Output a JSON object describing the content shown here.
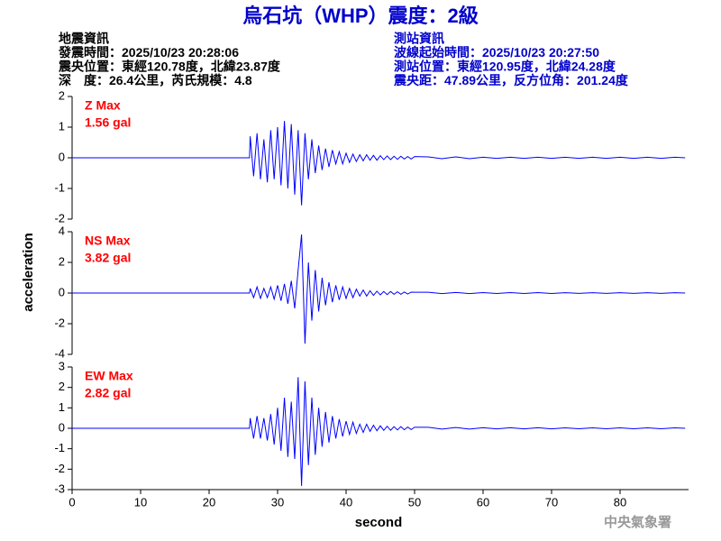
{
  "chart_data": {
    "type": "line",
    "title": "烏石坑（WHP）震度：2級",
    "info_left": [
      "地震資訊",
      "發震時間：2025/10/23 20:28:06",
      "震央位置：東經120.78度，北緯23.87度",
      "深　度：26.4公里，芮氏規模：4.8"
    ],
    "info_right": [
      "測站資訊",
      "波線起始時間：2025/10/23 20:27:50",
      "測站位置：東經120.95度，北緯24.28度",
      "震央距：47.89公里，反方位角：201.24度"
    ],
    "xlabel": "second",
    "ylabel": "acceleration",
    "footer": "中央氣象署",
    "xlim": [
      0,
      90
    ],
    "xticks": [
      0,
      10,
      20,
      30,
      40,
      50,
      60,
      70,
      80
    ],
    "x": [
      0,
      25.9,
      26,
      26.5,
      27,
      27.5,
      28,
      28.5,
      29,
      29.5,
      30,
      30.5,
      31,
      31.5,
      32,
      32.5,
      33,
      33.5,
      34,
      34.5,
      35,
      35.5,
      36,
      36.5,
      37,
      37.5,
      38,
      38.5,
      39,
      39.5,
      40,
      40.5,
      41,
      41.5,
      42,
      42.5,
      43,
      43.5,
      44,
      44.5,
      45,
      45.5,
      46,
      46.5,
      47,
      47.5,
      48,
      48.5,
      49,
      49.5,
      50,
      52,
      54,
      56,
      58,
      60,
      62,
      64,
      66,
      68,
      70,
      72,
      74,
      76,
      78,
      80,
      82,
      84,
      86,
      88,
      89.5
    ],
    "series": [
      {
        "name": "Z Max",
        "max_label": "1.56 gal",
        "color": "#0000ff",
        "label_color": "#ff0000",
        "ylim": [
          -2,
          2
        ],
        "yticks": [
          -2,
          -1,
          0,
          1,
          2
        ],
        "values": [
          0,
          0,
          0.7,
          -0.6,
          0.8,
          -0.7,
          0.6,
          -0.8,
          0.9,
          -0.7,
          1.0,
          -0.9,
          1.2,
          -1.0,
          1.1,
          -1.2,
          0.9,
          -1.55,
          0.8,
          -0.7,
          0.6,
          -0.5,
          0.4,
          -0.4,
          0.3,
          -0.3,
          0.25,
          -0.2,
          0.2,
          -0.2,
          0.15,
          -0.15,
          0.12,
          -0.12,
          0.1,
          -0.1,
          0.1,
          -0.08,
          0.08,
          -0.08,
          0.07,
          -0.06,
          0.06,
          -0.06,
          0.05,
          -0.05,
          0.05,
          -0.04,
          0.04,
          -0.04,
          0.04,
          0.03,
          -0.03,
          0.03,
          -0.03,
          0.02,
          -0.02,
          0.02,
          -0.02,
          0.02,
          -0.02,
          0.02,
          -0.02,
          0.02,
          -0.02,
          0.02,
          -0.02,
          0.02,
          -0.02,
          0.02,
          0
        ]
      },
      {
        "name": "NS Max",
        "max_label": "3.82 gal",
        "color": "#0000ff",
        "label_color": "#ff0000",
        "ylim": [
          -4,
          4
        ],
        "yticks": [
          -4,
          -2,
          0,
          2,
          4
        ],
        "values": [
          0,
          0,
          0.3,
          -0.3,
          0.4,
          -0.35,
          0.3,
          -0.3,
          0.4,
          -0.4,
          0.5,
          -0.5,
          0.6,
          -0.7,
          0.8,
          -1.0,
          1.5,
          3.82,
          -3.3,
          2.0,
          -1.8,
          1.5,
          -1.2,
          1.0,
          -0.8,
          0.7,
          -0.6,
          0.5,
          -0.45,
          0.4,
          -0.35,
          0.3,
          -0.3,
          0.25,
          -0.2,
          0.2,
          -0.2,
          0.15,
          -0.15,
          0.12,
          -0.12,
          0.1,
          -0.1,
          0.1,
          -0.08,
          0.08,
          -0.08,
          0.07,
          -0.06,
          0.06,
          0.05,
          0.05,
          -0.04,
          0.04,
          -0.04,
          0.03,
          -0.03,
          0.03,
          -0.03,
          0.03,
          -0.03,
          0.02,
          -0.02,
          0.02,
          -0.02,
          0.02,
          -0.02,
          0.02,
          -0.02,
          0.02,
          0
        ]
      },
      {
        "name": "EW Max",
        "max_label": "2.82 gal",
        "color": "#0000ff",
        "label_color": "#ff0000",
        "ylim": [
          -3,
          3
        ],
        "yticks": [
          -3,
          -2,
          -1,
          0,
          1,
          2,
          3
        ],
        "values": [
          0,
          0,
          0.5,
          -0.5,
          0.6,
          -0.5,
          0.5,
          -0.6,
          0.7,
          -0.8,
          1.0,
          -1.1,
          1.5,
          -1.4,
          1.3,
          -1.5,
          2.5,
          -2.82,
          2.3,
          -1.8,
          1.5,
          -1.3,
          1.0,
          -0.9,
          0.8,
          -0.7,
          0.6,
          -0.5,
          0.45,
          -0.4,
          0.35,
          -0.3,
          0.3,
          -0.25,
          0.2,
          -0.2,
          0.2,
          -0.15,
          0.15,
          -0.12,
          0.12,
          -0.1,
          0.1,
          -0.1,
          0.08,
          -0.08,
          0.08,
          -0.07,
          0.06,
          -0.06,
          0.05,
          0.05,
          -0.04,
          0.04,
          -0.04,
          0.03,
          -0.03,
          0.03,
          -0.03,
          0.03,
          -0.03,
          0.02,
          -0.02,
          0.02,
          -0.02,
          0.02,
          -0.02,
          0.02,
          -0.02,
          0.02,
          0
        ]
      }
    ]
  }
}
